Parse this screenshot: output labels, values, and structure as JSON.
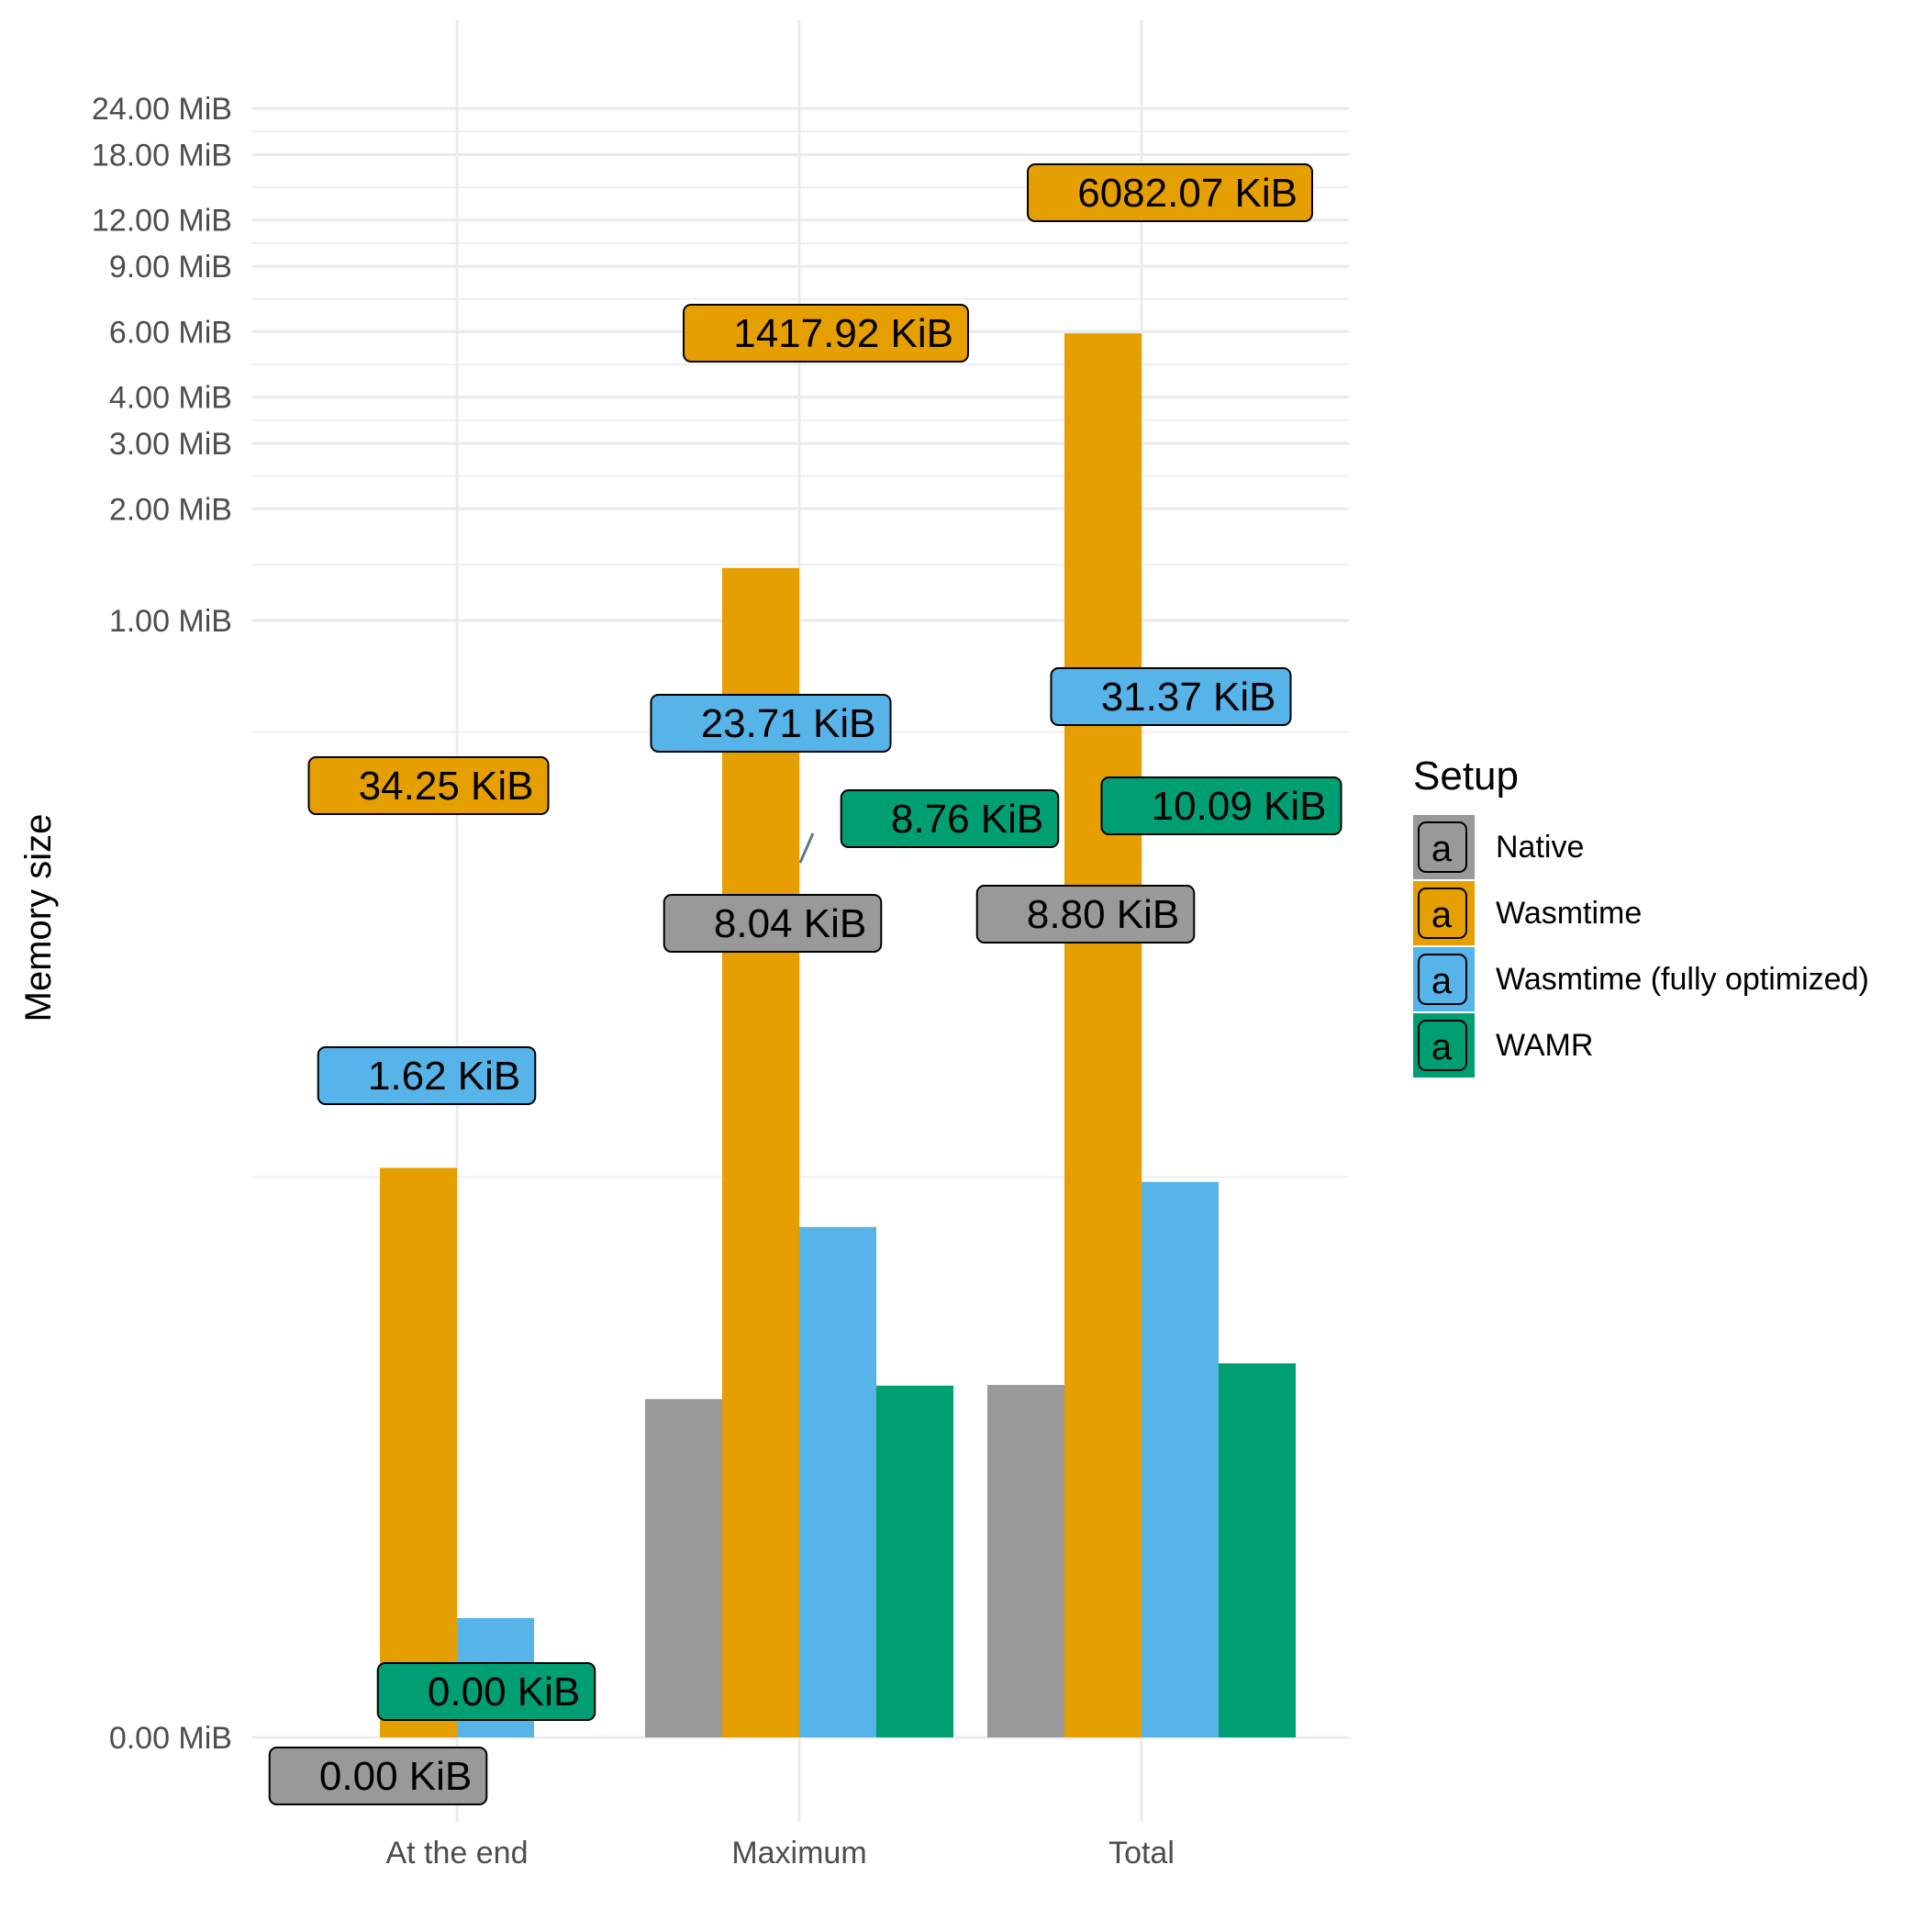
{
  "chart_data": {
    "type": "bar",
    "title": "",
    "xlabel": "",
    "ylabel": "Memory size",
    "scale": "pseudo-log",
    "y_unit_labels": "MiB",
    "value_unit": "KiB",
    "y_ticks": [
      0,
      1,
      2,
      3,
      4,
      6,
      9,
      12,
      18,
      24
    ],
    "y_tick_labels": [
      "0.00  MiB",
      "1.00  MiB",
      "2.00  MiB",
      "3.00  MiB",
      "4.00  MiB",
      "6.00  MiB",
      "9.00  MiB",
      "12.00  MiB",
      "18.00  MiB",
      "24.00  MiB"
    ],
    "ylim_mib": [
      0,
      24
    ],
    "grid": true,
    "legend_position": "right",
    "legend_title": "Setup",
    "legend_key_glyph": "a",
    "categories": [
      "At the end",
      "Maximum",
      "Total"
    ],
    "series": [
      {
        "name": "Native",
        "color": "#999999",
        "values_kib": [
          0.0,
          8.04,
          8.8
        ],
        "labels": [
          "0.00  KiB",
          "8.04  KiB",
          "8.80  KiB"
        ]
      },
      {
        "name": "Wasmtime",
        "color": "#E69F00",
        "values_kib": [
          34.25,
          1417.92,
          6082.07
        ],
        "labels": [
          "34.25  KiB",
          "1417.92  KiB",
          "6082.07  KiB"
        ]
      },
      {
        "name": "Wasmtime (fully optimized)",
        "color": "#56B4E9",
        "values_kib": [
          1.62,
          23.71,
          31.37
        ],
        "labels": [
          "1.62  KiB",
          "23.71  KiB",
          "31.37  KiB"
        ]
      },
      {
        "name": "WAMR",
        "color": "#009E73",
        "values_kib": [
          0.0,
          8.76,
          10.09
        ],
        "labels": [
          "0.00  KiB",
          "8.76  KiB",
          "10.09  KiB"
        ]
      }
    ]
  }
}
